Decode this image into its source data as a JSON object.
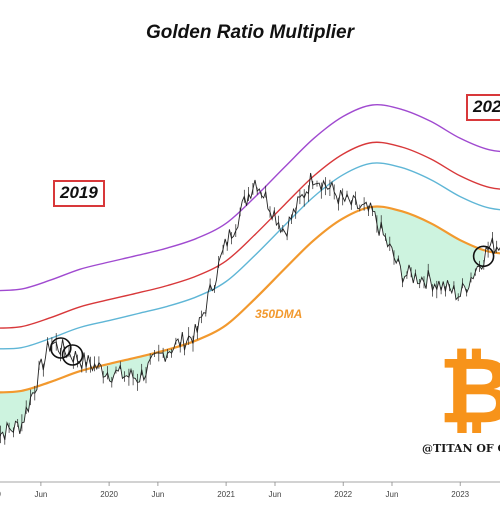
{
  "title": "Golden Ratio Multiplier",
  "annotations": {
    "year_left": "2019",
    "year_right": "202",
    "ma_label": "350DMA",
    "watermark": "@TITAN OF C"
  },
  "colors": {
    "price": "#222222",
    "ma350": "#f2992e",
    "band_blue": "#5fb6d6",
    "band_red": "#d8383a",
    "band_purple": "#a04ad0",
    "fill_green": "#c8f2dc",
    "annotation_box": "#d8383a",
    "logo": "#f7931a"
  },
  "icons": {
    "logo": "bitcoin-logo-icon"
  },
  "chart_data": {
    "type": "line",
    "title": "Golden Ratio Multiplier",
    "y_scale": "log",
    "grid": false,
    "legend": "none",
    "x_ticks": [
      "2019",
      "Jun",
      "2020",
      "Jun",
      "2021",
      "Jun",
      "2022",
      "Jun",
      "2023",
      "Jun"
    ],
    "x": [
      "2019-01",
      "2019-04",
      "2019-07",
      "2019-10",
      "2020-01",
      "2020-04",
      "2020-07",
      "2020-10",
      "2021-01",
      "2021-04",
      "2021-07",
      "2021-10",
      "2022-01",
      "2022-04",
      "2022-07",
      "2022-10",
      "2023-01",
      "2023-04",
      "2023-07",
      "2023-10"
    ],
    "series": [
      {
        "name": "350DMA",
        "role": "ma",
        "values": [
          5800,
          5900,
          6500,
          7300,
          7900,
          8500,
          9200,
          10200,
          12000,
          16000,
          22000,
          30000,
          38000,
          43000,
          41000,
          36000,
          30000,
          26500,
          26000,
          27500
        ]
      },
      {
        "role": "band-1.6x",
        "values": [
          9300,
          9400,
          10400,
          11700,
          12600,
          13600,
          14700,
          16300,
          19200,
          25600,
          35200,
          48000,
          60800,
          68800,
          65600,
          57600,
          48000,
          42400,
          41600,
          44000
        ]
      },
      {
        "role": "band-2x",
        "values": [
          11600,
          11800,
          13000,
          14600,
          15800,
          17000,
          18400,
          20400,
          24000,
          32000,
          44000,
          60000,
          76000,
          86000,
          82000,
          72000,
          60000,
          53000,
          52000,
          55000
        ]
      },
      {
        "role": "band-3x",
        "values": [
          17400,
          17700,
          19500,
          21900,
          23700,
          25500,
          27600,
          30600,
          36000,
          48000,
          66000,
          90000,
          114000,
          129000,
          123000,
          108000,
          90000,
          79500,
          78000,
          82500
        ]
      },
      {
        "name": "BTC Price",
        "role": "price",
        "values": [
          3600,
          4100,
          10000,
          8300,
          7200,
          6800,
          9200,
          11000,
          29000,
          58000,
          33000,
          61000,
          46000,
          40000,
          21000,
          19500,
          16600,
          28000,
          30000,
          34000
        ]
      }
    ]
  }
}
